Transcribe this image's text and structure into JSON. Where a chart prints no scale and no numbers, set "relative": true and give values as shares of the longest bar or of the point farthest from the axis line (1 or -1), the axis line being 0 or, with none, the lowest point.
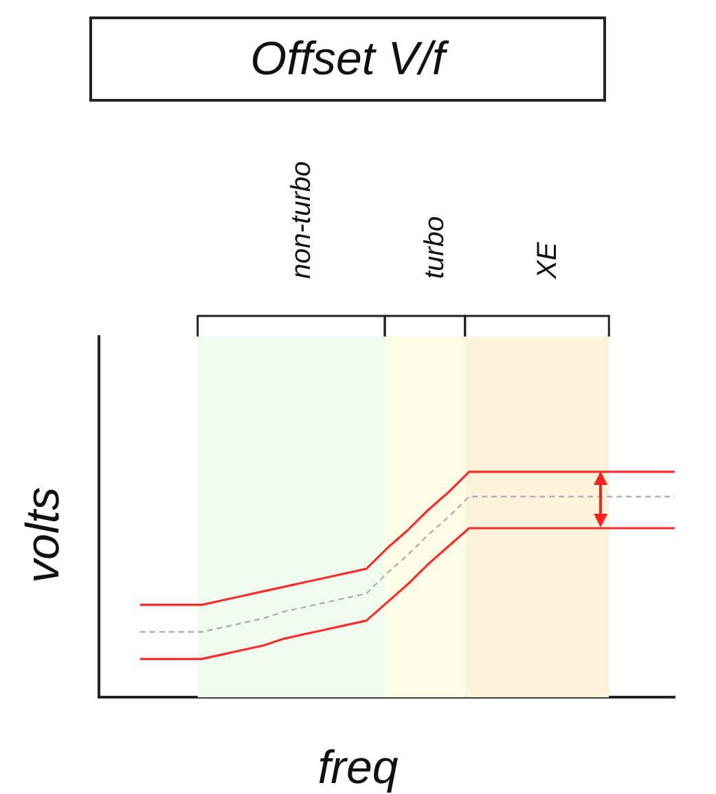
{
  "chart_data": {
    "type": "line",
    "title": "Offset V/f",
    "xlabel": "freq",
    "ylabel": "volts",
    "relative": true,
    "grid": false,
    "legend": false,
    "marker": "none",
    "categories": [
      null,
      null,
      null,
      null,
      null,
      null,
      null,
      null,
      null,
      null,
      null,
      null,
      null,
      null,
      null,
      null,
      null,
      null,
      null,
      null,
      null,
      null,
      null,
      null,
      null,
      null,
      null,
      null,
      null
    ],
    "series": [
      {
        "color": "#ff2a2a",
        "values": [
          null,
          null,
          0.41,
          0.41,
          0.41,
          0.41,
          0.43,
          0.45,
          0.47,
          0.49,
          0.51,
          0.53,
          0.55,
          0.57,
          0.66,
          0.74,
          0.83,
          0.91,
          1,
          1,
          1,
          1,
          1,
          1,
          1,
          1,
          1,
          1,
          1
        ],
        "line_style": "solid"
      },
      {
        "color": "#b0b0b0",
        "values": [
          null,
          null,
          0.29,
          0.29,
          0.29,
          0.29,
          0.31,
          0.33,
          0.35,
          0.38,
          0.4,
          0.42,
          0.44,
          0.46,
          0.55,
          0.63,
          0.72,
          0.8,
          0.89,
          0.89,
          0.89,
          0.89,
          0.89,
          0.89,
          0.89,
          0.89,
          0.89,
          0.89,
          0.89
        ],
        "line_style": "dashed"
      },
      {
        "color": "#ff2a2a",
        "values": [
          null,
          null,
          0.17,
          0.17,
          0.17,
          0.17,
          0.19,
          0.21,
          0.23,
          0.26,
          0.28,
          0.3,
          0.32,
          0.34,
          0.42,
          0.5,
          0.59,
          0.67,
          0.75,
          0.75,
          0.75,
          0.75,
          0.75,
          0.75,
          0.75,
          0.75,
          0.75,
          0.75,
          0.75
        ],
        "line_style": "solid"
      }
    ],
    "annotations": [
      "non-turbo",
      "turbo",
      "XE"
    ]
  }
}
